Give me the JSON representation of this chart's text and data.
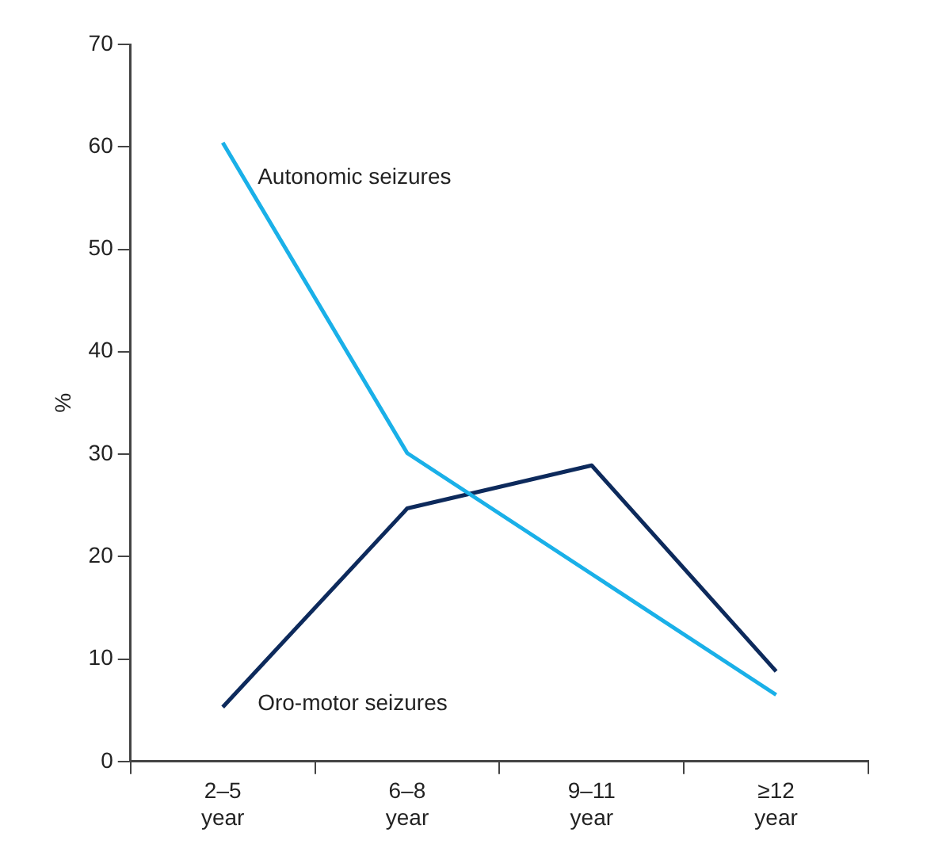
{
  "chart_data": {
    "type": "line",
    "ylabel": "%",
    "categories": [
      "2–5 year",
      "6–8 year",
      "9–11 year",
      "≥12 year"
    ],
    "series": [
      {
        "name": "Autonomic seizures",
        "color": "#1ab0e8",
        "values": [
          60.4,
          30.1,
          18.3,
          6.5
        ]
      },
      {
        "name": "Oro-motor seizures",
        "color": "#0d2a5c",
        "values": [
          5.3,
          24.7,
          28.9,
          8.8
        ]
      }
    ],
    "ylim": [
      0,
      70
    ],
    "yticks": [
      0,
      10,
      20,
      30,
      40,
      50,
      60,
      70
    ],
    "grid": false,
    "legend": false,
    "marker": "none",
    "line_style": "solid"
  }
}
